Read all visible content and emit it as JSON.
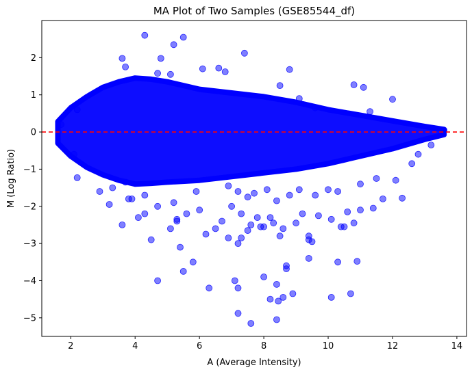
{
  "chart_data": {
    "type": "scatter",
    "title": "MA Plot of Two Samples (GSE85544_df)",
    "xlabel": "A (Average Intensity)",
    "ylabel": "M (Log Ratio)",
    "xlim": [
      1.1,
      14.3
    ],
    "ylim": [
      -5.5,
      3.0
    ],
    "xticks": [
      "2",
      "4",
      "6",
      "8",
      "10",
      "12",
      "14"
    ],
    "yticks": [
      "2",
      "1",
      "0",
      "−1",
      "−2",
      "−3",
      "−4",
      "−5"
    ],
    "grid": false,
    "point_color": "#0000ff",
    "point_alpha": 0.5,
    "reference_line": {
      "y": 0,
      "color": "#ff0000",
      "style": "dashed"
    },
    "series": [
      {
        "points": [
          [
            4.3,
            2.6
          ],
          [
            5.5,
            2.55
          ],
          [
            5.2,
            2.35
          ],
          [
            7.4,
            2.12
          ],
          [
            3.6,
            1.98
          ],
          [
            4.8,
            1.98
          ],
          [
            3.7,
            1.75
          ],
          [
            6.6,
            1.72
          ],
          [
            6.1,
            1.7
          ],
          [
            8.8,
            1.68
          ],
          [
            6.8,
            1.62
          ],
          [
            4.7,
            1.58
          ],
          [
            5.1,
            1.55
          ],
          [
            10.8,
            1.27
          ],
          [
            11.1,
            1.2
          ],
          [
            8.5,
            1.25
          ],
          [
            12.0,
            0.88
          ],
          [
            9.1,
            0.9
          ],
          [
            9.6,
            0.65
          ],
          [
            11.3,
            0.55
          ],
          [
            2.2,
            0.6
          ],
          [
            1.7,
            0.2
          ],
          [
            13.6,
            0.05
          ],
          [
            2.1,
            -0.6
          ],
          [
            2.2,
            -1.23
          ],
          [
            3.7,
            -1.35
          ],
          [
            2.9,
            -1.6
          ],
          [
            3.3,
            -1.5
          ],
          [
            3.8,
            -1.8
          ],
          [
            4.3,
            -1.7
          ],
          [
            5.9,
            -1.6
          ],
          [
            6.9,
            -1.45
          ],
          [
            7.2,
            -1.6
          ],
          [
            7.5,
            -1.75
          ],
          [
            7.7,
            -1.65
          ],
          [
            8.1,
            -1.55
          ],
          [
            8.4,
            -1.85
          ],
          [
            8.8,
            -1.7
          ],
          [
            9.1,
            -1.55
          ],
          [
            9.6,
            -1.7
          ],
          [
            10.0,
            -1.55
          ],
          [
            10.3,
            -1.6
          ],
          [
            11.7,
            -1.8
          ],
          [
            12.3,
            -1.78
          ],
          [
            12.1,
            -1.3
          ],
          [
            11.5,
            -1.25
          ],
          [
            11.0,
            -1.4
          ],
          [
            12.8,
            -0.6
          ],
          [
            13.2,
            -0.35
          ],
          [
            12.6,
            -0.85
          ],
          [
            3.2,
            -1.95
          ],
          [
            3.9,
            -1.8
          ],
          [
            4.1,
            -2.3
          ],
          [
            4.3,
            -2.2
          ],
          [
            4.7,
            -2.0
          ],
          [
            5.2,
            -1.9
          ],
          [
            5.3,
            -2.4
          ],
          [
            5.6,
            -2.2
          ],
          [
            6.0,
            -2.1
          ],
          [
            6.5,
            -2.6
          ],
          [
            6.7,
            -2.4
          ],
          [
            7.0,
            -2.0
          ],
          [
            7.3,
            -2.2
          ],
          [
            7.6,
            -2.5
          ],
          [
            7.8,
            -2.3
          ],
          [
            8.0,
            -2.55
          ],
          [
            8.2,
            -2.3
          ],
          [
            8.6,
            -2.6
          ],
          [
            9.0,
            -2.45
          ],
          [
            9.2,
            -2.2
          ],
          [
            9.4,
            -2.8
          ],
          [
            9.7,
            -2.25
          ],
          [
            10.1,
            -2.35
          ],
          [
            10.5,
            -2.55
          ],
          [
            10.6,
            -2.15
          ],
          [
            11.0,
            -2.1
          ],
          [
            11.4,
            -2.05
          ],
          [
            10.8,
            -2.45
          ],
          [
            3.6,
            -2.5
          ],
          [
            5.1,
            -2.6
          ],
          [
            5.3,
            -2.35
          ],
          [
            6.2,
            -2.75
          ],
          [
            6.9,
            -2.85
          ],
          [
            7.3,
            -2.85
          ],
          [
            7.5,
            -2.65
          ],
          [
            7.9,
            -2.55
          ],
          [
            8.3,
            -2.45
          ],
          [
            8.5,
            -2.8
          ],
          [
            9.4,
            -2.9
          ],
          [
            9.5,
            -2.95
          ],
          [
            10.4,
            -2.55
          ],
          [
            7.2,
            -3.0
          ],
          [
            5.4,
            -3.1
          ],
          [
            4.5,
            -2.9
          ],
          [
            9.4,
            -3.4
          ],
          [
            10.3,
            -3.5
          ],
          [
            10.9,
            -3.48
          ],
          [
            5.5,
            -3.75
          ],
          [
            5.8,
            -3.5
          ],
          [
            4.7,
            -4.0
          ],
          [
            8.7,
            -3.6
          ],
          [
            8.7,
            -3.68
          ],
          [
            8.0,
            -3.9
          ],
          [
            6.3,
            -4.2
          ],
          [
            7.1,
            -4.0
          ],
          [
            7.2,
            -4.2
          ],
          [
            8.4,
            -4.1
          ],
          [
            8.2,
            -4.5
          ],
          [
            8.6,
            -4.45
          ],
          [
            8.9,
            -4.35
          ],
          [
            8.45,
            -4.55
          ],
          [
            10.1,
            -4.45
          ],
          [
            10.7,
            -4.35
          ],
          [
            7.2,
            -4.88
          ],
          [
            7.6,
            -5.15
          ],
          [
            8.4,
            -5.05
          ]
        ]
      }
    ]
  }
}
